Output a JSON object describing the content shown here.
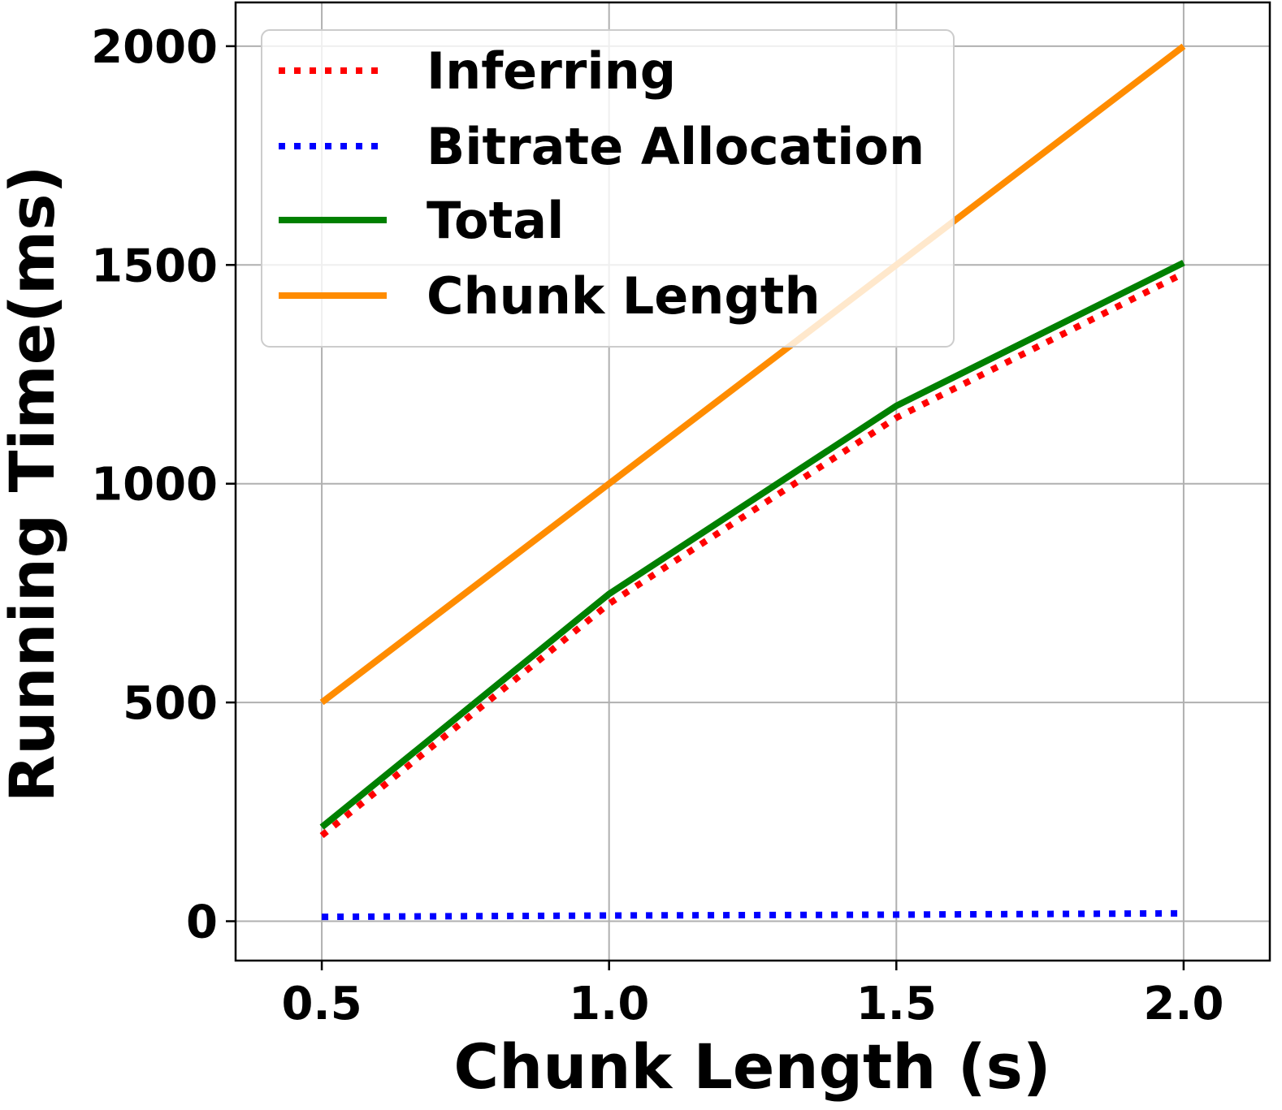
{
  "chart_data": {
    "type": "line",
    "title": "",
    "xlabel": "Chunk Length (s)",
    "ylabel": "Running Time(ms)",
    "x": [
      0.5,
      1.0,
      1.5,
      2.0
    ],
    "xlim": [
      0.35,
      2.15
    ],
    "ylim": [
      -90,
      2100
    ],
    "xticks": [
      0.5,
      1.0,
      1.5,
      2.0
    ],
    "xtick_labels": [
      "0.5",
      "1.0",
      "1.5",
      "2.0"
    ],
    "yticks": [
      0,
      500,
      1000,
      1500,
      2000
    ],
    "ytick_labels": [
      "0",
      "500",
      "1000",
      "1500",
      "2000"
    ],
    "grid": true,
    "legend_position": "upper-left",
    "series": [
      {
        "name": "Inferring",
        "values": [
          205,
          735,
          1160,
          1490
        ],
        "color": "#ff0000",
        "style": "dotted"
      },
      {
        "name": "Bitrate Allocation",
        "values": [
          10,
          13,
          15,
          18
        ],
        "color": "#0000ff",
        "style": "dotted"
      },
      {
        "name": "Total",
        "values": [
          215,
          748,
          1178,
          1505
        ],
        "color": "#008000",
        "style": "solid"
      },
      {
        "name": "Chunk Length",
        "values": [
          500,
          1000,
          1500,
          2000
        ],
        "color": "#ff8c00",
        "style": "solid"
      }
    ]
  }
}
